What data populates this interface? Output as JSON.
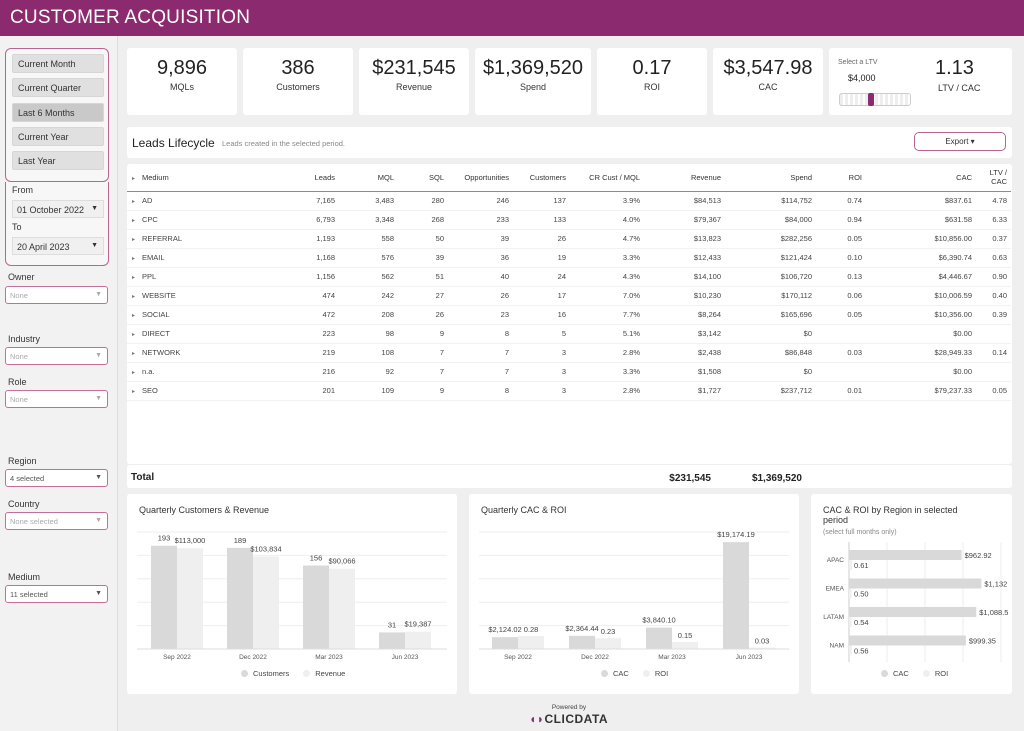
{
  "header": {
    "title": "CUSTOMER ACQUISITION"
  },
  "period": [
    "Current Month",
    "Current Quarter",
    "Last 6 Months",
    "Current Year",
    "Last Year"
  ],
  "period_selected": "Last 6 Months",
  "dates": {
    "from_label": "From",
    "from": "01 October 2022",
    "to_label": "To",
    "to": "20 April 2023"
  },
  "filters": {
    "owner": {
      "label": "Owner",
      "value": "None"
    },
    "industry": {
      "label": "Industry",
      "value": "None"
    },
    "role": {
      "label": "Role",
      "value": "None"
    },
    "region": {
      "label": "Region",
      "value": "4 selected"
    },
    "country": {
      "label": "Country",
      "value": "None selected"
    },
    "medium": {
      "label": "Medium",
      "value": "11 selected"
    }
  },
  "kpis": [
    {
      "value": "9,896",
      "label": "MQLs"
    },
    {
      "value": "386",
      "label": "Customers"
    },
    {
      "value": "$231,545",
      "label": "Revenue"
    },
    {
      "value": "$1,369,520",
      "label": "Spend"
    },
    {
      "value": "0.17",
      "label": "ROI"
    },
    {
      "value": "$3,547.98",
      "label": "CAC"
    }
  ],
  "ltv": {
    "select_label": "Select a LTV",
    "ltv_value": "$4,000",
    "ratio": "1.13",
    "ratio_label": "LTV / CAC",
    "slider_fraction": 0.42
  },
  "leads": {
    "title": "Leads Lifecycle",
    "subtitle": "Leads created in the selected period.",
    "export": "Export",
    "columns": [
      "Medium",
      "Leads",
      "MQL",
      "SQL",
      "Opportunities",
      "Customers",
      "CR Cust / MQL",
      "Revenue",
      "Spend",
      "ROI",
      "CAC",
      "LTV / CAC"
    ],
    "rows": [
      [
        "AD",
        "7,165",
        "3,483",
        "280",
        "246",
        "137",
        "3.9%",
        "$84,513",
        "$114,752",
        "0.74",
        "$837.61",
        "4.78"
      ],
      [
        "CPC",
        "6,793",
        "3,348",
        "268",
        "233",
        "133",
        "4.0%",
        "$79,367",
        "$84,000",
        "0.94",
        "$631.58",
        "6.33"
      ],
      [
        "REFERRAL",
        "1,193",
        "558",
        "50",
        "39",
        "26",
        "4.7%",
        "$13,823",
        "$282,256",
        "0.05",
        "$10,856.00",
        "0.37"
      ],
      [
        "EMAIL",
        "1,168",
        "576",
        "39",
        "36",
        "19",
        "3.3%",
        "$12,433",
        "$121,424",
        "0.10",
        "$6,390.74",
        "0.63"
      ],
      [
        "PPL",
        "1,156",
        "562",
        "51",
        "40",
        "24",
        "4.3%",
        "$14,100",
        "$106,720",
        "0.13",
        "$4,446.67",
        "0.90"
      ],
      [
        "WEBSITE",
        "474",
        "242",
        "27",
        "26",
        "17",
        "7.0%",
        "$10,230",
        "$170,112",
        "0.06",
        "$10,006.59",
        "0.40"
      ],
      [
        "SOCIAL",
        "472",
        "208",
        "26",
        "23",
        "16",
        "7.7%",
        "$8,264",
        "$165,696",
        "0.05",
        "$10,356.00",
        "0.39"
      ],
      [
        "DIRECT",
        "223",
        "98",
        "9",
        "8",
        "5",
        "5.1%",
        "$3,142",
        "$0",
        "",
        "$0.00",
        ""
      ],
      [
        "NETWORK",
        "219",
        "108",
        "7",
        "7",
        "3",
        "2.8%",
        "$2,438",
        "$86,848",
        "0.03",
        "$28,949.33",
        "0.14"
      ],
      [
        "n.a.",
        "216",
        "92",
        "7",
        "7",
        "3",
        "3.3%",
        "$1,508",
        "$0",
        "",
        "$0.00",
        ""
      ],
      [
        "SEO",
        "201",
        "109",
        "9",
        "8",
        "3",
        "2.8%",
        "$1,727",
        "$237,712",
        "0.01",
        "$79,237.33",
        "0.05"
      ]
    ],
    "total_label": "Total",
    "total_revenue": "$231,545",
    "total_spend": "$1,369,520"
  },
  "colors": {
    "header": "#8b2a6e",
    "accent": "#c56f98",
    "bar_dark": "#d9d9d9",
    "bar_light": "#efefef"
  },
  "chart_data": [
    {
      "type": "bar",
      "title": "Quarterly Customers & Revenue",
      "categories": [
        "Sep 2022",
        "Dec 2022",
        "Mar 2023",
        "Jun 2023"
      ],
      "series": [
        {
          "name": "Customers",
          "values": [
            193,
            189,
            156,
            31
          ],
          "labels": [
            "193",
            "189",
            "156",
            "31"
          ]
        },
        {
          "name": "Revenue",
          "values": [
            113000,
            103834,
            90066,
            19387
          ],
          "labels": [
            "$113,000",
            "$103,834",
            "$90,066",
            "$19,387"
          ]
        }
      ],
      "legend": [
        "Customers",
        "Revenue"
      ]
    },
    {
      "type": "bar",
      "title": "Quarterly CAC & ROI",
      "categories": [
        "Sep 2022",
        "Dec 2022",
        "Mar 2023",
        "Jun 2023"
      ],
      "series": [
        {
          "name": "CAC",
          "values": [
            2124.02,
            2364.44,
            3840.1,
            19174.19
          ],
          "labels": [
            "$2,124.02",
            "$2,364.44",
            "$3,840.10",
            "$19,174.19"
          ]
        },
        {
          "name": "ROI",
          "values": [
            0.28,
            0.23,
            0.15,
            0.03
          ],
          "labels": [
            "0.28",
            "0.23",
            "0.15",
            "0.03"
          ]
        }
      ],
      "legend": [
        "CAC",
        "ROI"
      ]
    },
    {
      "type": "bar",
      "orientation": "horizontal",
      "title_line1": "CAC & ROI by Region in selected",
      "title_line2": "period",
      "subtitle": "(select full months only)",
      "categories": [
        "APAC",
        "EMEA",
        "LATAM",
        "NAM"
      ],
      "series": [
        {
          "name": "CAC",
          "values": [
            962.92,
            1132,
            1088.5,
            999.35
          ],
          "labels": [
            "$962.92",
            "$1,132",
            "$1,088.5",
            "$999.35"
          ]
        },
        {
          "name": "ROI",
          "values": [
            0.61,
            0.5,
            0.54,
            0.56
          ],
          "labels": [
            "0.61",
            "0.50",
            "0.54",
            "0.56"
          ]
        }
      ],
      "legend": [
        "CAC",
        "ROI"
      ]
    }
  ],
  "footer": {
    "powered": "Powered by",
    "logo": "CLICDATA"
  }
}
